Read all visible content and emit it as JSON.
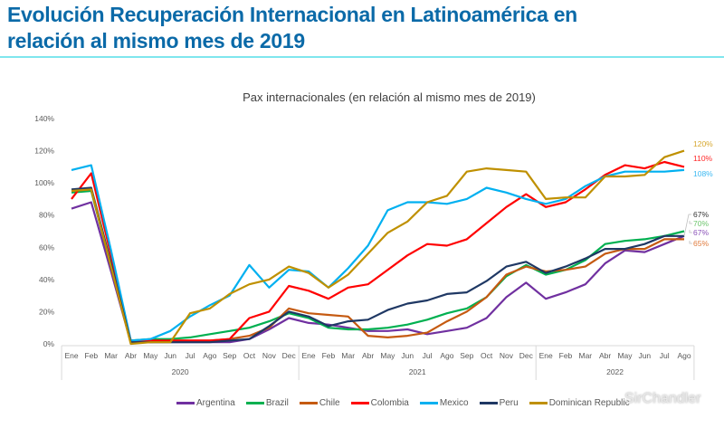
{
  "page": {
    "title_line1": "Evolución Recuperación Internacional en Latinoamérica en",
    "title_line2": "relación al mismo mes de 2019",
    "watermark": "SirChandler"
  },
  "chart_data": {
    "type": "line",
    "title": "Pax internacionales (en relación al mismo mes de 2019)",
    "xlabel": "",
    "ylabel": "",
    "ylim": [
      0,
      140
    ],
    "yticks": [
      "0%",
      "20%",
      "40%",
      "60%",
      "80%",
      "100%",
      "120%",
      "140%"
    ],
    "ytick_values": [
      0,
      20,
      40,
      60,
      80,
      100,
      120,
      140
    ],
    "grid": false,
    "legend_position": "bottom",
    "x": [
      "Ene",
      "Feb",
      "Mar",
      "Abr",
      "May",
      "Jun",
      "Jul",
      "Ago",
      "Sep",
      "Oct",
      "Nov",
      "Dec",
      "Ene",
      "Feb",
      "Mar",
      "Abr",
      "May",
      "Jun",
      "Jul",
      "Ago",
      "Sep",
      "Oct",
      "Nov",
      "Dec",
      "Ene",
      "Feb",
      "Mar",
      "Abr",
      "May",
      "Jun",
      "Jul",
      "Ago"
    ],
    "year_groups": [
      {
        "label": "2020",
        "count": 12
      },
      {
        "label": "2021",
        "count": 12
      },
      {
        "label": "2022",
        "count": 8
      }
    ],
    "series": [
      {
        "name": "Argentina",
        "color": "#7030a0",
        "end_label": "67%",
        "values": [
          84,
          88,
          45,
          1,
          1,
          1,
          1,
          1,
          1,
          3,
          9,
          16,
          13,
          12,
          10,
          8,
          8,
          9,
          6,
          8,
          10,
          16,
          29,
          38,
          28,
          32,
          37,
          50,
          58,
          57,
          62,
          67
        ]
      },
      {
        "name": "Brazil",
        "color": "#00b050",
        "end_label": "70%",
        "values": [
          94,
          95,
          48,
          2,
          3,
          3,
          4,
          6,
          8,
          10,
          14,
          19,
          16,
          10,
          9,
          9,
          10,
          12,
          15,
          19,
          22,
          29,
          42,
          49,
          43,
          46,
          52,
          62,
          64,
          65,
          67,
          70
        ]
      },
      {
        "name": "Chile",
        "color": "#c55a11",
        "end_label": "65%",
        "values": [
          95,
          96,
          48,
          1,
          1,
          2,
          2,
          2,
          3,
          5,
          10,
          22,
          19,
          18,
          17,
          5,
          4,
          5,
          7,
          14,
          20,
          29,
          43,
          48,
          45,
          46,
          48,
          56,
          59,
          59,
          65,
          65
        ]
      },
      {
        "name": "Colombia",
        "color": "#ff0000",
        "end_label": "110%",
        "values": [
          90,
          106,
          55,
          2,
          2,
          2,
          2,
          2,
          3,
          16,
          20,
          36,
          33,
          28,
          35,
          37,
          46,
          55,
          62,
          61,
          65,
          75,
          85,
          93,
          85,
          88,
          96,
          105,
          111,
          109,
          113,
          110
        ]
      },
      {
        "name": "Mexico",
        "color": "#00b0f0",
        "end_label": "108%",
        "values": [
          108,
          111,
          58,
          2,
          3,
          8,
          17,
          24,
          30,
          49,
          35,
          46,
          45,
          35,
          47,
          61,
          83,
          88,
          88,
          87,
          90,
          97,
          94,
          90,
          87,
          90,
          98,
          104,
          107,
          107,
          107,
          108
        ]
      },
      {
        "name": "Peru",
        "color": "#1f3864",
        "end_label": "67%",
        "values": [
          96,
          97,
          50,
          1,
          1,
          1,
          1,
          1,
          2,
          3,
          11,
          20,
          17,
          11,
          14,
          15,
          21,
          25,
          27,
          31,
          32,
          39,
          48,
          51,
          44,
          48,
          53,
          59,
          59,
          62,
          67,
          67
        ]
      },
      {
        "name": "Dominican Republic",
        "color": "#bf9000",
        "end_label": "120%",
        "values": [
          95,
          96,
          48,
          0,
          1,
          1,
          19,
          22,
          31,
          37,
          40,
          48,
          44,
          35,
          43,
          56,
          69,
          76,
          88,
          92,
          107,
          109,
          108,
          107,
          90,
          91,
          91,
          104,
          104,
          105,
          116,
          120
        ]
      }
    ]
  },
  "legend": {
    "items": [
      "Argentina",
      "Brazil",
      "Chile",
      "Colombia",
      "Mexico",
      "Peru",
      "Dominican Republic"
    ]
  }
}
